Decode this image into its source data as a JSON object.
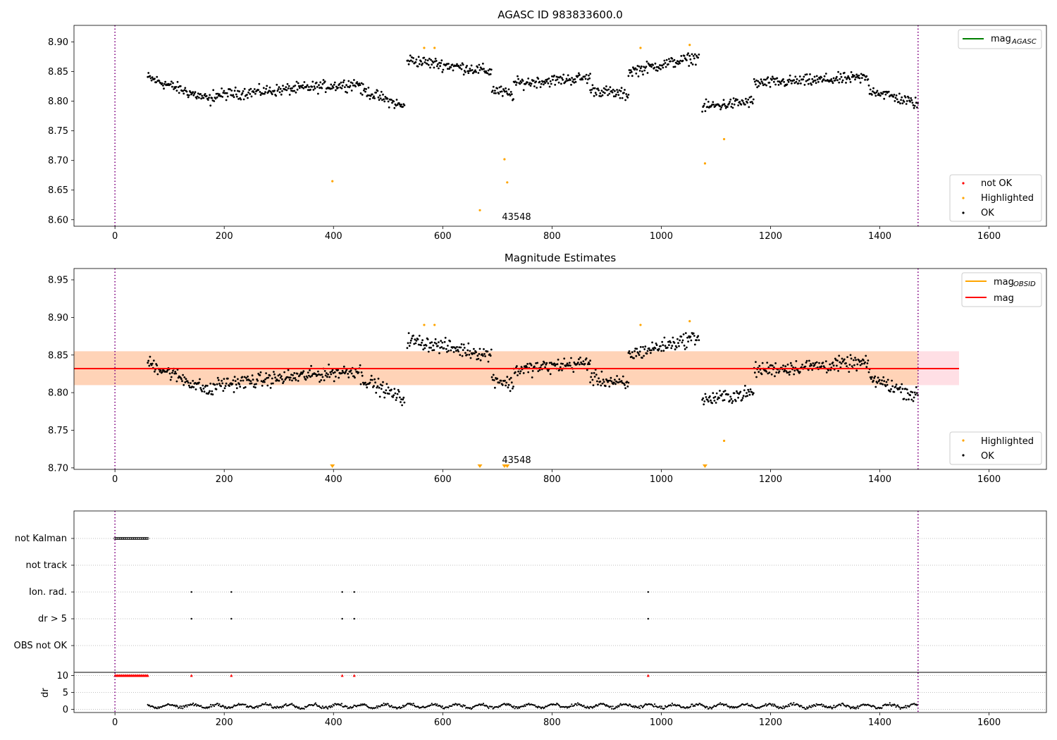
{
  "chart_data": [
    {
      "type": "scatter",
      "title": "AGASC ID 983833600.0",
      "xlabel": "",
      "ylabel": "",
      "xlim": [
        -75,
        1705
      ],
      "ylim": [
        8.589,
        8.928
      ],
      "xticks": [
        "0",
        "200",
        "400",
        "600",
        "800",
        "1000",
        "1200",
        "1400",
        "1600"
      ],
      "yticks": [
        "8.60",
        "8.65",
        "8.70",
        "8.75",
        "8.80",
        "8.85",
        "8.90"
      ],
      "vlines": [
        0,
        1470
      ],
      "annotation": "43548",
      "legend_lines": [
        {
          "label": "mag",
          "sub": "AGASC",
          "color": "#008000"
        }
      ],
      "legend_points": [
        {
          "label": "not OK",
          "color": "#ff0000"
        },
        {
          "label": "Highlighted",
          "color": "#ffa500"
        },
        {
          "label": "OK",
          "color": "#000000"
        }
      ],
      "highlighted": [
        [
          398,
          8.665
        ],
        [
          668,
          8.616
        ],
        [
          713,
          8.702
        ],
        [
          718,
          8.663
        ],
        [
          1080,
          8.695
        ],
        [
          1115,
          8.736
        ],
        [
          566,
          8.89
        ],
        [
          585,
          8.89
        ],
        [
          962,
          8.89
        ],
        [
          1052,
          8.895
        ]
      ],
      "segments": [
        {
          "x0": 60,
          "x1": 180,
          "y0": 8.84,
          "y1": 8.8
        },
        {
          "x0": 180,
          "x1": 450,
          "y0": 8.81,
          "y1": 8.83
        },
        {
          "x0": 450,
          "x1": 530,
          "y0": 8.82,
          "y1": 8.79
        },
        {
          "x0": 535,
          "x1": 690,
          "y0": 8.87,
          "y1": 8.85
        },
        {
          "x0": 690,
          "x1": 730,
          "y0": 8.82,
          "y1": 8.81
        },
        {
          "x0": 730,
          "x1": 870,
          "y0": 8.83,
          "y1": 8.84
        },
        {
          "x0": 870,
          "x1": 940,
          "y0": 8.82,
          "y1": 8.81
        },
        {
          "x0": 940,
          "x1": 1070,
          "y0": 8.85,
          "y1": 8.875
        },
        {
          "x0": 1075,
          "x1": 1170,
          "y0": 8.79,
          "y1": 8.8
        },
        {
          "x0": 1170,
          "x1": 1380,
          "y0": 8.83,
          "y1": 8.84
        },
        {
          "x0": 1380,
          "x1": 1470,
          "y0": 8.82,
          "y1": 8.795
        }
      ]
    },
    {
      "type": "scatter",
      "title": "Magnitude Estimates",
      "xlabel": "",
      "ylabel": "",
      "xlim": [
        -75,
        1705
      ],
      "ylim": [
        8.698,
        8.965
      ],
      "xticks": [
        "0",
        "200",
        "400",
        "600",
        "800",
        "1000",
        "1200",
        "1400",
        "1600"
      ],
      "yticks": [
        "8.70",
        "8.75",
        "8.80",
        "8.85",
        "8.90",
        "8.95"
      ],
      "vlines": [
        0,
        1470
      ],
      "annotation": "43548",
      "mag": 8.832,
      "band": [
        8.81,
        8.855
      ],
      "band_xlim": [
        -75,
        1545
      ],
      "legend_lines": [
        {
          "label": "mag",
          "sub": "OBSID",
          "color": "#ffa500"
        },
        {
          "label": "mag",
          "sub": "",
          "color": "#ff0000"
        }
      ],
      "legend_points": [
        {
          "label": "Highlighted",
          "color": "#ffa500"
        },
        {
          "label": "OK",
          "color": "#000000"
        }
      ],
      "markers_below": [
        398,
        668,
        713,
        718,
        1080
      ],
      "highlighted": [
        [
          1115,
          8.736
        ],
        [
          566,
          8.89
        ],
        [
          585,
          8.89
        ],
        [
          962,
          8.89
        ],
        [
          1052,
          8.895
        ]
      ]
    },
    {
      "type": "scatter",
      "title": "",
      "xlim": [
        -75,
        1705
      ],
      "xticks": [
        "0",
        "200",
        "400",
        "600",
        "800",
        "1000",
        "1200",
        "1400",
        "1600"
      ],
      "vlines": [
        0,
        1470
      ],
      "flag_rows": [
        "not Kalman",
        "not track",
        "Ion. rad.",
        "dr > 5",
        "OBS not OK"
      ],
      "flag_events": {
        "not Kalman": [
          [
            0,
            60
          ]
        ],
        "Ion. rad.": [
          140,
          213,
          416,
          438,
          976
        ],
        "dr > 5": [
          140,
          213,
          416,
          438,
          976
        ]
      },
      "dr_ylabel": "dr",
      "dr_yticks": [
        "0",
        "5",
        "10"
      ],
      "dr_ylim": [
        -0.5,
        10.5
      ],
      "dr_red": [
        [
          0,
          60
        ],
        140,
        213,
        416,
        438,
        976
      ]
    }
  ]
}
